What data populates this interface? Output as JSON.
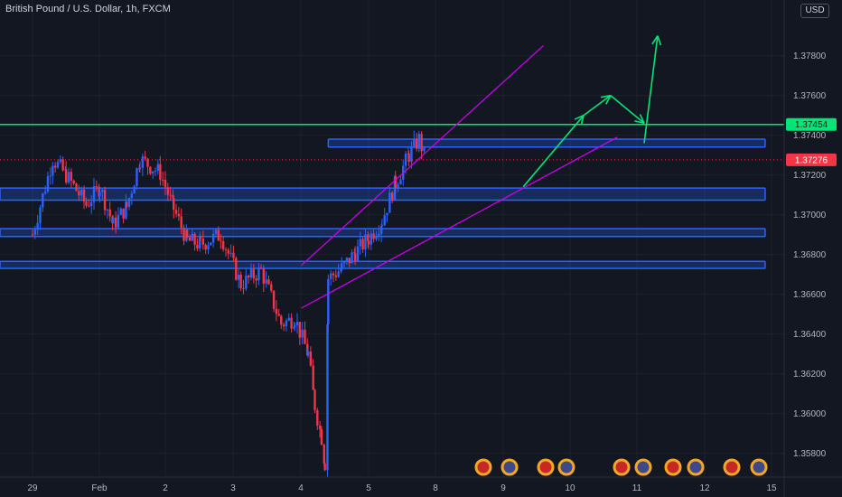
{
  "header": {
    "symbol_title": "British Pound / U.S. Dollar, 1h, FXCM",
    "currency": "USD"
  },
  "colors": {
    "background": "#131722",
    "up_candle": "#2962ff",
    "down_candle": "#f23645",
    "zone_fill": "#2962ff",
    "resistance_line": "#00e676",
    "channel_line": "#d500f9",
    "arrow": "#00e676",
    "last_price_badge": "#f23645",
    "resistance_badge": "#00e676"
  },
  "chart_data": {
    "type": "candlestick",
    "symbol": "GBPUSD",
    "timeframe": "1h",
    "source": "FXCM",
    "x_tick_labels": [
      "29",
      "Feb",
      "2",
      "3",
      "4",
      "5",
      "8",
      "9",
      "10",
      "11",
      "12",
      "15"
    ],
    "y_tick_labels": [
      "1.37800",
      "1.37600",
      "1.37400",
      "1.37200",
      "1.37000",
      "1.36800",
      "1.36600",
      "1.36400",
      "1.36200",
      "1.36000",
      "1.35800"
    ],
    "y_ticks": [
      1.378,
      1.376,
      1.374,
      1.372,
      1.37,
      1.368,
      1.366,
      1.364,
      1.362,
      1.36,
      1.358
    ],
    "ylim": [
      1.3568,
      1.3808
    ],
    "resistance_level": {
      "price": 1.37454,
      "label": "1.37454"
    },
    "last_price": {
      "price": 1.37276,
      "label": "1.37276"
    },
    "zones": [
      {
        "start_day": 4.4,
        "end_day": 10.9,
        "high": 1.3738,
        "low": 1.3734
      },
      {
        "start_day": -0.5,
        "end_day": 10.9,
        "high": 1.37134,
        "low": 1.37073
      },
      {
        "start_day": -0.5,
        "end_day": 10.9,
        "high": 1.3693,
        "low": 1.3689
      },
      {
        "start_day": -0.5,
        "end_day": 10.9,
        "high": 1.36765,
        "low": 1.3673
      }
    ],
    "channel": {
      "upper": [
        [
          4.0,
          1.36745
        ],
        [
          7.6,
          1.3785
        ]
      ],
      "lower": [
        [
          4.0,
          1.3653
        ],
        [
          8.7,
          1.3739
        ]
      ]
    },
    "projection_arrows": [
      [
        [
          7.3,
          1.3714
        ],
        [
          8.2,
          1.375
        ]
      ],
      [
        [
          8.2,
          1.375
        ],
        [
          8.6,
          1.376
        ]
      ],
      [
        [
          8.6,
          1.376
        ],
        [
          9.1,
          1.3746
        ]
      ],
      [
        [
          9.1,
          1.3736
        ],
        [
          9.3,
          1.379
        ]
      ]
    ],
    "candle_seed": [
      [
        0.0,
        1.369
      ],
      [
        0.3,
        1.3728
      ],
      [
        0.5,
        1.372
      ],
      [
        0.8,
        1.3705
      ],
      [
        1.0,
        1.3714
      ],
      [
        1.2,
        1.3695
      ],
      [
        1.4,
        1.3704
      ],
      [
        1.6,
        1.3728
      ],
      [
        1.9,
        1.3721
      ],
      [
        2.1,
        1.3703
      ],
      [
        2.3,
        1.3687
      ],
      [
        2.5,
        1.3685
      ],
      [
        2.8,
        1.369
      ],
      [
        3.1,
        1.3665
      ],
      [
        3.4,
        1.3672
      ],
      [
        3.7,
        1.3645
      ],
      [
        3.9,
        1.3648
      ],
      [
        4.1,
        1.363
      ],
      [
        4.2,
        1.3604
      ],
      [
        4.3,
        1.3588
      ],
      [
        4.35,
        1.3575
      ],
      [
        4.4,
        1.3668
      ],
      [
        4.6,
        1.3673
      ],
      [
        4.8,
        1.3681
      ],
      [
        5.0,
        1.3688
      ],
      [
        5.2,
        1.3697
      ],
      [
        5.4,
        1.3716
      ],
      [
        5.6,
        1.373
      ],
      [
        5.75,
        1.3738
      ],
      [
        5.85,
        1.3728
      ]
    ]
  }
}
